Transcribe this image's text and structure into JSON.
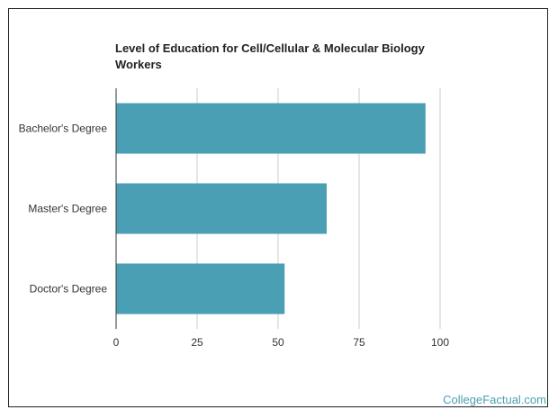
{
  "chart_data": {
    "type": "bar",
    "orientation": "horizontal",
    "title_lines": [
      "Level of Education for Cell/Cellular & Molecular Biology",
      "Workers"
    ],
    "title": "Level of Education for Cell/Cellular & Molecular Biology Workers",
    "categories": [
      "Bachelor's Degree",
      "Master's Degree",
      "Doctor's Degree"
    ],
    "values": [
      95.5,
      65,
      52
    ],
    "xlim": [
      0,
      100
    ],
    "xticks": [
      "0",
      "25",
      "50",
      "75",
      "100"
    ],
    "xtick_values": [
      0,
      25,
      50,
      75,
      100
    ],
    "grid": true,
    "bar_color": "#4a9fb4",
    "xlabel": "",
    "ylabel": ""
  },
  "watermark": "CollegeFactual.com"
}
